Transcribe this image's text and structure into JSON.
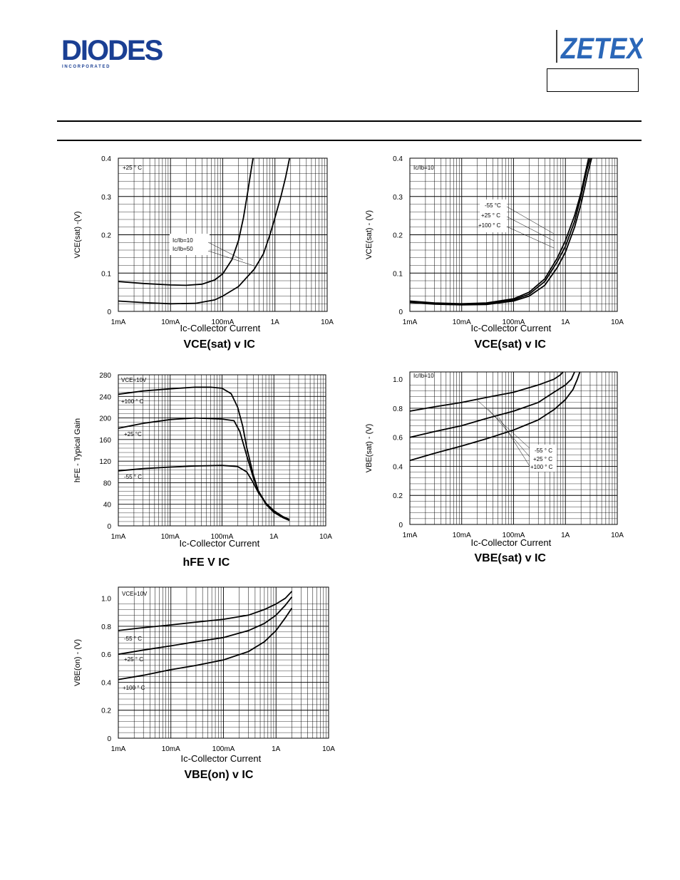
{
  "header": {
    "diodes_logo": {
      "name": "DIODES",
      "tagline": "I N C O R P O R A T E D"
    },
    "zetex_logo": {
      "name": "ZETEX"
    }
  },
  "colors": {
    "line": "#000000",
    "grid": "#000000",
    "zetex_blue": "#2b67b8",
    "diodes_blue": "#1a3f93"
  },
  "chart_data": [
    {
      "id": "vcesat1",
      "type": "line",
      "x_scale": "log",
      "x_ticks": [
        0.001,
        0.01,
        0.1,
        1,
        10
      ],
      "x_tick_labels": [
        "1mA",
        "10mA",
        "100mA",
        "1A",
        "10A"
      ],
      "y_ticks": [
        0,
        0.1,
        0.2,
        0.3,
        0.4
      ],
      "y_tick_labels": [
        "0",
        "0.1",
        "0.2",
        "0.3",
        "0.4"
      ],
      "ylim": [
        0,
        0.4
      ],
      "ylabel": "VCE(sat) -(V)",
      "xlabel": "Ic-Collector Current",
      "title": "VCE(sat) v IC",
      "annotations": [
        "+25 ° C",
        "Ic/Ib=10",
        "Ic/Ib=50"
      ],
      "series": [
        {
          "points": [
            [
              0.001,
              0.078
            ],
            [
              0.003,
              0.073
            ],
            [
              0.01,
              0.069
            ],
            [
              0.02,
              0.068
            ],
            [
              0.04,
              0.071
            ],
            [
              0.07,
              0.082
            ],
            [
              0.1,
              0.098
            ],
            [
              0.15,
              0.135
            ],
            [
              0.2,
              0.185
            ],
            [
              0.25,
              0.245
            ],
            [
              0.3,
              0.31
            ],
            [
              0.35,
              0.37
            ],
            [
              0.38,
              0.4
            ]
          ]
        },
        {
          "points": [
            [
              0.001,
              0.027
            ],
            [
              0.003,
              0.023
            ],
            [
              0.01,
              0.02
            ],
            [
              0.03,
              0.021
            ],
            [
              0.07,
              0.03
            ],
            [
              0.1,
              0.04
            ],
            [
              0.2,
              0.065
            ],
            [
              0.4,
              0.11
            ],
            [
              0.6,
              0.15
            ],
            [
              0.8,
              0.2
            ],
            [
              1.0,
              0.245
            ],
            [
              1.3,
              0.3
            ],
            [
              1.6,
              0.35
            ],
            [
              1.9,
              0.4
            ]
          ]
        }
      ]
    },
    {
      "id": "vcesat2",
      "type": "line",
      "x_scale": "log",
      "x_ticks": [
        0.001,
        0.01,
        0.1,
        1,
        10
      ],
      "x_tick_labels": [
        "1mA",
        "10mA",
        "100mA",
        "1A",
        "10A"
      ],
      "y_ticks": [
        0,
        0.1,
        0.2,
        0.3,
        0.4
      ],
      "y_tick_labels": [
        "0",
        "0.1",
        "0.2",
        "0.3",
        "0.4"
      ],
      "ylim": [
        0,
        0.4
      ],
      "ylabel": "VCE(sat) - (V)",
      "xlabel": "Ic-Collector Current",
      "title": "VCE(sat) v IC",
      "annotations": [
        "Ic/Ib=10",
        "-55 °C",
        "+25 ° C",
        "+100 ° C"
      ],
      "series": [
        {
          "points": [
            [
              0.001,
              0.027
            ],
            [
              0.003,
              0.022
            ],
            [
              0.01,
              0.02
            ],
            [
              0.03,
              0.022
            ],
            [
              0.1,
              0.033
            ],
            [
              0.2,
              0.05
            ],
            [
              0.4,
              0.085
            ],
            [
              0.7,
              0.14
            ],
            [
              1.0,
              0.185
            ],
            [
              1.5,
              0.25
            ],
            [
              2.0,
              0.31
            ],
            [
              2.5,
              0.37
            ],
            [
              2.8,
              0.4
            ]
          ]
        },
        {
          "points": [
            [
              0.001,
              0.025
            ],
            [
              0.003,
              0.021
            ],
            [
              0.01,
              0.018
            ],
            [
              0.03,
              0.02
            ],
            [
              0.1,
              0.03
            ],
            [
              0.2,
              0.045
            ],
            [
              0.4,
              0.078
            ],
            [
              0.7,
              0.13
            ],
            [
              1.0,
              0.17
            ],
            [
              1.5,
              0.235
            ],
            [
              2.0,
              0.3
            ],
            [
              2.6,
              0.37
            ],
            [
              3.0,
              0.4
            ]
          ]
        },
        {
          "points": [
            [
              0.001,
              0.023
            ],
            [
              0.003,
              0.019
            ],
            [
              0.01,
              0.017
            ],
            [
              0.03,
              0.018
            ],
            [
              0.1,
              0.027
            ],
            [
              0.2,
              0.04
            ],
            [
              0.4,
              0.068
            ],
            [
              0.7,
              0.115
            ],
            [
              1.0,
              0.155
            ],
            [
              1.5,
              0.22
            ],
            [
              2.0,
              0.28
            ],
            [
              2.7,
              0.36
            ],
            [
              3.2,
              0.4
            ]
          ]
        }
      ]
    },
    {
      "id": "hfe",
      "type": "line",
      "x_scale": "log",
      "x_ticks": [
        0.001,
        0.01,
        0.1,
        1,
        10
      ],
      "x_tick_labels": [
        "1mA",
        "10mA",
        "100mA",
        "1A",
        "10A"
      ],
      "y_ticks": [
        0,
        40,
        80,
        120,
        160,
        200,
        240,
        280
      ],
      "y_tick_labels": [
        "0",
        "40",
        "80",
        "120",
        "160",
        "200",
        "240",
        "280"
      ],
      "ylim": [
        0,
        280
      ],
      "ylabel": "hFE - Typical Gain",
      "xlabel": "Ic-Collector Current",
      "title": "hFE V IC",
      "annotations": [
        "VCE=10V",
        "+100 ° C",
        "+25 °C",
        "-55 ° C"
      ],
      "series": [
        {
          "points": [
            [
              0.001,
              244
            ],
            [
              0.003,
              250
            ],
            [
              0.01,
              254
            ],
            [
              0.03,
              257
            ],
            [
              0.06,
              257
            ],
            [
              0.1,
              255
            ],
            [
              0.15,
              245
            ],
            [
              0.2,
              220
            ],
            [
              0.25,
              185
            ],
            [
              0.3,
              145
            ],
            [
              0.4,
              95
            ],
            [
              0.5,
              65
            ],
            [
              0.7,
              40
            ],
            [
              1.0,
              25
            ],
            [
              1.5,
              15
            ],
            [
              2.0,
              10
            ]
          ]
        },
        {
          "points": [
            [
              0.001,
              181
            ],
            [
              0.003,
              190
            ],
            [
              0.01,
              197
            ],
            [
              0.03,
              200
            ],
            [
              0.1,
              198
            ],
            [
              0.17,
              195
            ],
            [
              0.22,
              175
            ],
            [
              0.3,
              130
            ],
            [
              0.4,
              90
            ],
            [
              0.5,
              65
            ],
            [
              0.7,
              42
            ],
            [
              1.0,
              27
            ],
            [
              1.5,
              16
            ],
            [
              2.0,
              11
            ]
          ]
        },
        {
          "points": [
            [
              0.001,
              102
            ],
            [
              0.003,
              106
            ],
            [
              0.01,
              109
            ],
            [
              0.03,
              111
            ],
            [
              0.1,
              112
            ],
            [
              0.2,
              110
            ],
            [
              0.3,
              100
            ],
            [
              0.4,
              80
            ],
            [
              0.5,
              62
            ],
            [
              0.7,
              42
            ],
            [
              1.0,
              28
            ],
            [
              1.5,
              17
            ],
            [
              2.0,
              12
            ]
          ]
        }
      ]
    },
    {
      "id": "vbesat",
      "type": "line",
      "x_scale": "log",
      "x_ticks": [
        0.001,
        0.01,
        0.1,
        1,
        10
      ],
      "x_tick_labels": [
        "1mA",
        "10mA",
        "100mA",
        "1A",
        "10A"
      ],
      "y_ticks": [
        0,
        0.2,
        0.4,
        0.6,
        0.8,
        1.0
      ],
      "y_tick_labels": [
        "0",
        "0.2",
        "0.4",
        "0.6",
        "0.8",
        "1.0"
      ],
      "ylim": [
        0,
        1.05
      ],
      "ylabel": "VBE(sat) - (V)",
      "xlabel": "Ic-Collector Current",
      "title": "VBE(sat) v IC",
      "annotations": [
        "Ic/Ib=10",
        "-55 ° C",
        "+25 ° C",
        "+100 ° C"
      ],
      "series": [
        {
          "points": [
            [
              0.001,
              0.78
            ],
            [
              0.003,
              0.81
            ],
            [
              0.01,
              0.84
            ],
            [
              0.03,
              0.875
            ],
            [
              0.1,
              0.91
            ],
            [
              0.3,
              0.96
            ],
            [
              0.6,
              1.0
            ],
            [
              0.8,
              1.03
            ],
            [
              0.9,
              1.05
            ]
          ]
        },
        {
          "points": [
            [
              0.001,
              0.6
            ],
            [
              0.003,
              0.64
            ],
            [
              0.01,
              0.68
            ],
            [
              0.03,
              0.73
            ],
            [
              0.1,
              0.78
            ],
            [
              0.3,
              0.84
            ],
            [
              0.6,
              0.91
            ],
            [
              1.0,
              0.96
            ],
            [
              1.3,
              1.0
            ],
            [
              1.5,
              1.05
            ]
          ]
        },
        {
          "points": [
            [
              0.001,
              0.44
            ],
            [
              0.003,
              0.49
            ],
            [
              0.01,
              0.54
            ],
            [
              0.03,
              0.59
            ],
            [
              0.1,
              0.65
            ],
            [
              0.3,
              0.72
            ],
            [
              0.6,
              0.79
            ],
            [
              1.0,
              0.86
            ],
            [
              1.4,
              0.93
            ],
            [
              1.7,
              1.0
            ],
            [
              1.9,
              1.05
            ]
          ]
        }
      ]
    },
    {
      "id": "vbeon",
      "type": "line",
      "x_scale": "log",
      "x_ticks": [
        0.001,
        0.01,
        0.1,
        1,
        10
      ],
      "x_tick_labels": [
        "1mA",
        "10mA",
        "100mA",
        "1A",
        "10A"
      ],
      "y_ticks": [
        0,
        0.2,
        0.4,
        0.6,
        0.8,
        1.0
      ],
      "y_tick_labels": [
        "0",
        "0.2",
        "0.4",
        "0.6",
        "0.8",
        "1.0"
      ],
      "ylim": [
        0,
        1.08
      ],
      "ylabel": "VBE(on) - (V)",
      "xlabel": "Ic-Collector Current",
      "title": "VBE(on) v IC",
      "annotations": [
        "VCE=10V",
        "-55 ° C",
        "+25 ° C",
        "+100 ° C"
      ],
      "series": [
        {
          "points": [
            [
              0.001,
              0.77
            ],
            [
              0.003,
              0.79
            ],
            [
              0.01,
              0.81
            ],
            [
              0.03,
              0.83
            ],
            [
              0.1,
              0.85
            ],
            [
              0.3,
              0.88
            ],
            [
              0.6,
              0.92
            ],
            [
              1.0,
              0.96
            ],
            [
              1.5,
              1.0
            ],
            [
              2.0,
              1.05
            ]
          ]
        },
        {
          "points": [
            [
              0.001,
              0.6
            ],
            [
              0.003,
              0.63
            ],
            [
              0.01,
              0.66
            ],
            [
              0.03,
              0.69
            ],
            [
              0.1,
              0.72
            ],
            [
              0.3,
              0.77
            ],
            [
              0.6,
              0.82
            ],
            [
              1.0,
              0.88
            ],
            [
              1.5,
              0.95
            ],
            [
              2.0,
              1.01
            ]
          ]
        },
        {
          "points": [
            [
              0.001,
              0.42
            ],
            [
              0.003,
              0.45
            ],
            [
              0.01,
              0.49
            ],
            [
              0.03,
              0.52
            ],
            [
              0.1,
              0.56
            ],
            [
              0.3,
              0.62
            ],
            [
              0.6,
              0.69
            ],
            [
              1.0,
              0.77
            ],
            [
              1.5,
              0.86
            ],
            [
              2.0,
              0.93
            ]
          ]
        }
      ]
    }
  ]
}
